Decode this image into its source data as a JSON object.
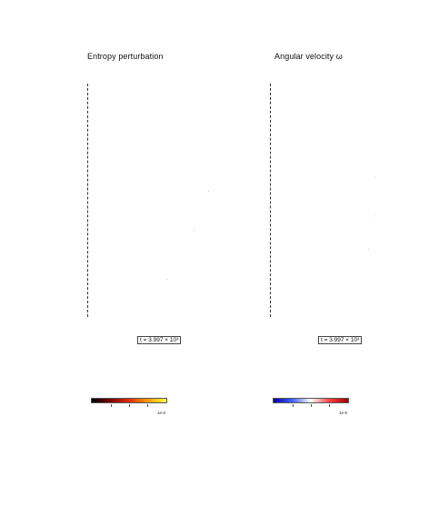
{
  "panels": [
    {
      "title": "Entropy perturbation",
      "time_label": "t = 3.997 × 10³",
      "colorbar": {
        "gradient": [
          "#000000",
          "#7a0000",
          "#e03000",
          "#ff9a00",
          "#ffff40"
        ],
        "scale_label": "1e-5"
      }
    },
    {
      "title": "Angular velocity ω",
      "time_label": "t = 3.997 × 10³",
      "colorbar": {
        "gradient": [
          "#0000a0",
          "#4060ff",
          "#ffffff",
          "#ff4040",
          "#a00000"
        ],
        "scale_label": "1e-5"
      }
    }
  ]
}
